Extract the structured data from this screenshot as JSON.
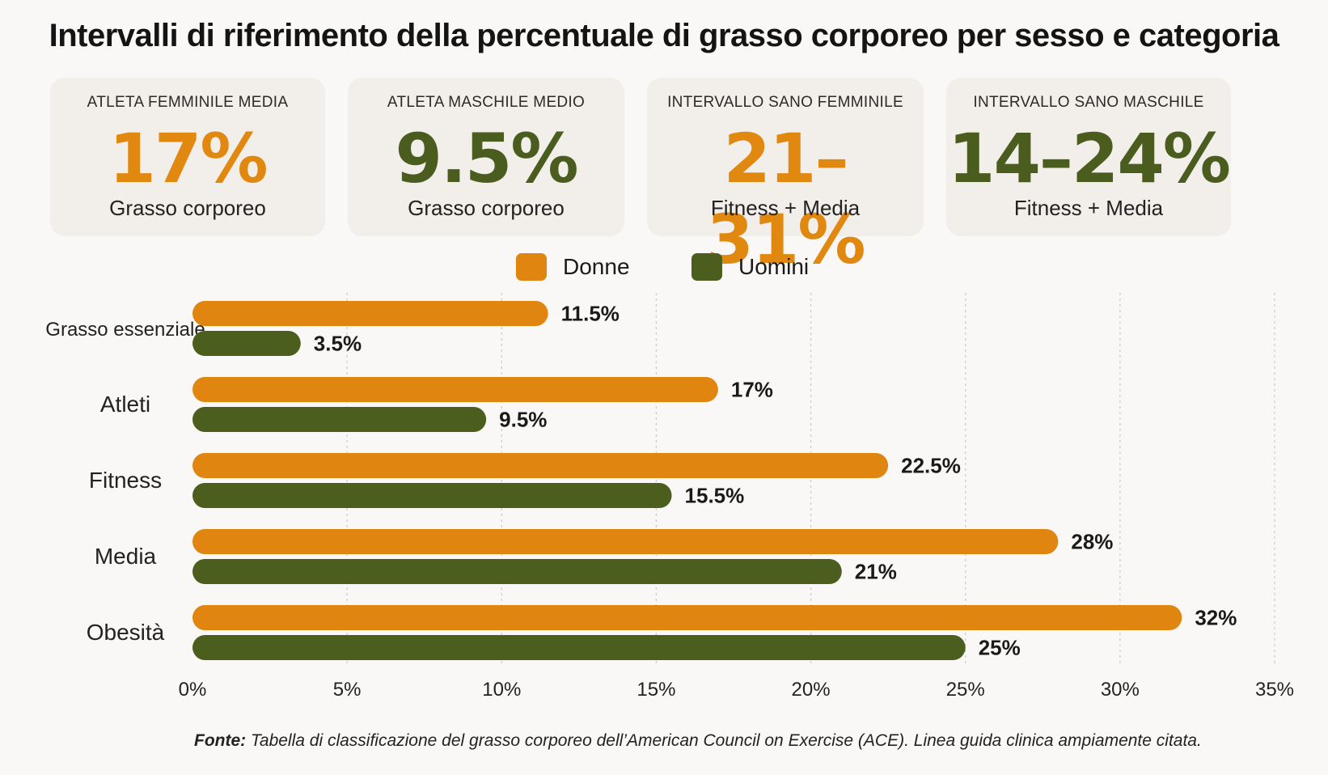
{
  "title": "Intervalli di riferimento della percentuale di grasso corporeo per sesso e categoria",
  "cards": [
    {
      "label": "ATLETA FEMMINILE MEDIA",
      "value": "17%",
      "sub": "Grasso corporeo",
      "color": "#e0880f"
    },
    {
      "label": "ATLETA MASCHILE MEDIO",
      "value": "9.5%",
      "sub": "Grasso corporeo",
      "color": "#4a5d1f"
    },
    {
      "label": "INTERVALLO SANO FEMMINILE",
      "value": "21–31%",
      "sub": "Fitness + Media",
      "color": "#e0880f"
    },
    {
      "label": "INTERVALLO SANO MASCHILE",
      "value": "14–24%",
      "sub": "Fitness + Media",
      "color": "#4a5d1f"
    }
  ],
  "legend": [
    {
      "label": "Donne",
      "color": "#df8510"
    },
    {
      "label": "Uomini",
      "color": "#4b5e1e"
    }
  ],
  "chart_data": {
    "type": "bar",
    "orientation": "horizontal",
    "categories": [
      "Grasso essenziale",
      "Atleti",
      "Fitness",
      "Media",
      "Obesità"
    ],
    "series": [
      {
        "name": "Donne",
        "values": [
          11.5,
          17,
          22.5,
          28,
          32
        ],
        "labels": [
          "11.5%",
          "17%",
          "22.5%",
          "28%",
          "32%"
        ],
        "color": "#df8510"
      },
      {
        "name": "Uomini",
        "values": [
          3.5,
          9.5,
          15.5,
          21,
          25
        ],
        "labels": [
          "3.5%",
          "9.5%",
          "15.5%",
          "21%",
          "25%"
        ],
        "color": "#4b5e1e"
      }
    ],
    "xlim": [
      0,
      35
    ],
    "xticks": [
      0,
      5,
      10,
      15,
      20,
      25,
      30,
      35
    ],
    "xtick_labels": [
      "0%",
      "5%",
      "10%",
      "15%",
      "20%",
      "25%",
      "30%",
      "35%"
    ],
    "grid": "vertical dashed",
    "legend_position": "top-center"
  },
  "source": {
    "prefix": "Fonte:",
    "text": " Tabella di classificazione del grasso corporeo dell’American Council on Exercise (ACE). Linea guida clinica ampiamente citata."
  }
}
